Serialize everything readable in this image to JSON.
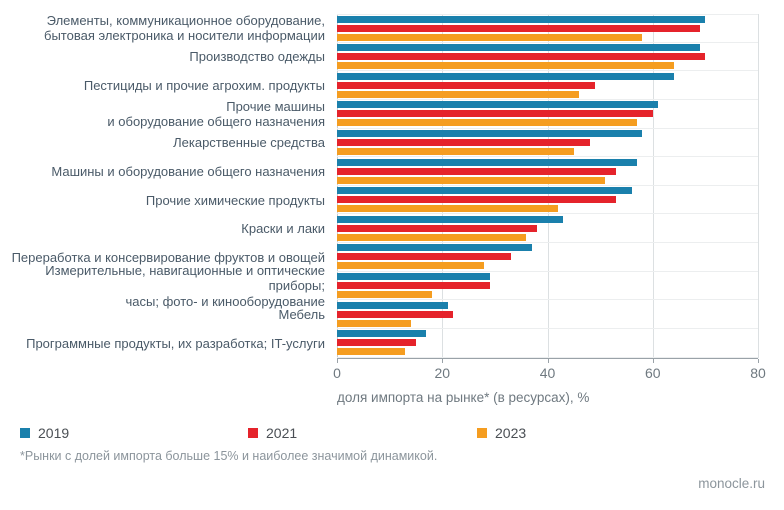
{
  "chart_data": {
    "type": "bar",
    "orientation": "horizontal",
    "categories": [
      "Элементы, коммуникационное оборудование,\nбытовая электроника и носители информации",
      "Производство одежды",
      "Пестициды и прочие агрохим. продукты",
      "Прочие машины\nи оборудование общего назначения",
      "Лекарственные средства",
      "Машины и оборудование общего назначения",
      "Прочие химические продукты",
      "Краски и лаки",
      "Переработка и консервирование фруктов и овощей",
      "Измерительные, навигационные и оптические приборы;\nчасы; фото- и кинооборудование",
      "Мебель",
      "Программные продукты, их разработка; IT-услуги"
    ],
    "series": [
      {
        "name": "2019",
        "color": "#1A80AC",
        "values": [
          70,
          69,
          64,
          61,
          58,
          57,
          56,
          43,
          37,
          29,
          21,
          17
        ]
      },
      {
        "name": "2021",
        "color": "#E5232B",
        "values": [
          69,
          70,
          49,
          60,
          48,
          53,
          53,
          38,
          33,
          29,
          22,
          15
        ]
      },
      {
        "name": "2023",
        "color": "#F59D20",
        "values": [
          58,
          64,
          46,
          57,
          45,
          51,
          42,
          36,
          28,
          18,
          14,
          13
        ]
      }
    ],
    "xlabel": "доля импорта на рынке* (в ресурсах), %",
    "xlim": [
      0,
      80
    ],
    "xticks": [
      0,
      20,
      40,
      60,
      80
    ],
    "grid": true,
    "legend_position": "bottom"
  },
  "footnote": "*Рынки с долей импорта больше 15% и наиболее значимой динамикой.",
  "source": "monocle.ru"
}
